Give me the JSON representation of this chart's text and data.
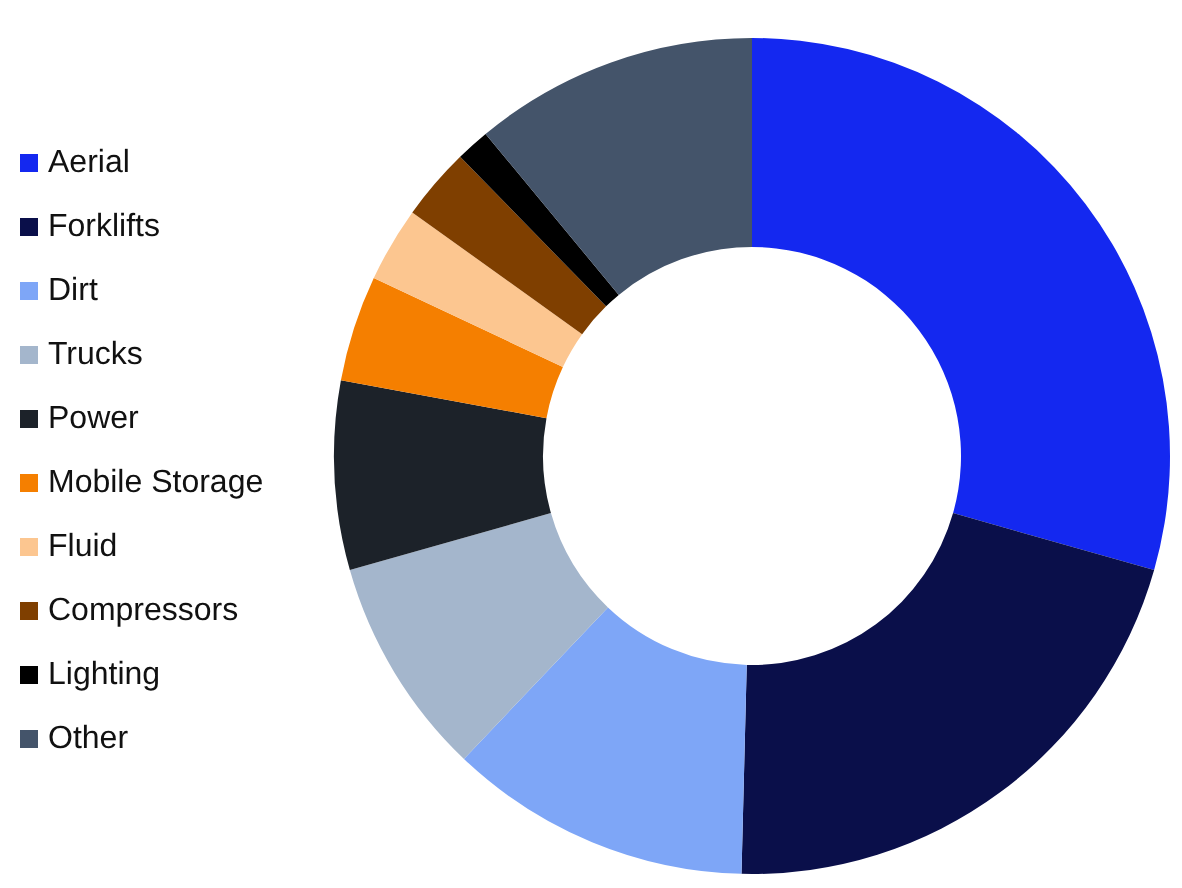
{
  "chart_data": {
    "type": "donut",
    "categories": [
      "Aerial",
      "Forklifts",
      "Dirt",
      "Trucks",
      "Power",
      "Mobile Storage",
      "Fluid",
      "Compressors",
      "Lighting",
      "Other"
    ],
    "values": [
      29.4,
      21,
      11.7,
      8.5,
      7.3,
      4.1,
      2.9,
      2.8,
      1.3,
      11
    ],
    "colors": [
      "#1428f0",
      "#0a0f4a",
      "#7ea6f7",
      "#a4b6cc",
      "#1c2229",
      "#f57f00",
      "#fcc690",
      "#7f3f00",
      "#000000",
      "#44546a"
    ],
    "legend": "left"
  }
}
